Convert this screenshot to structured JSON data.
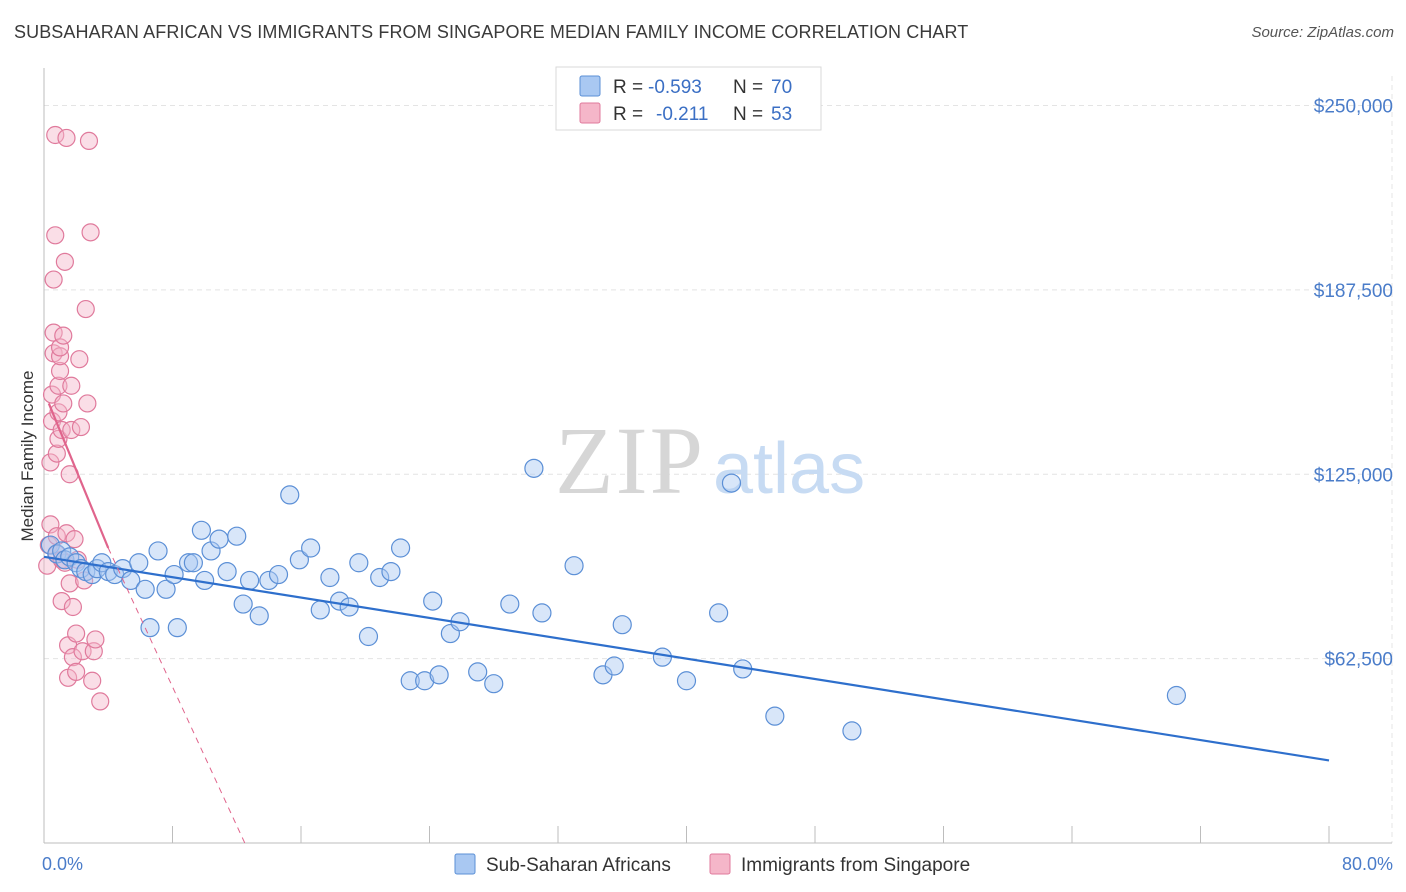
{
  "header": {
    "title": "SUBSAHARAN AFRICAN VS IMMIGRANTS FROM SINGAPORE MEDIAN FAMILY INCOME CORRELATION CHART",
    "source": "Source: ZipAtlas.com"
  },
  "watermark": {
    "zip": "ZIP",
    "atlas": "atlas"
  },
  "legend": {
    "rows": [
      {
        "r_label": "R =",
        "r_value": "-0.593",
        "n_label": "N =",
        "n_value": "70",
        "color": "#a9c8f2"
      },
      {
        "r_label": "R =",
        "r_value": "-0.211",
        "n_label": "N =",
        "n_value": "53",
        "color": "#f5b6c9"
      }
    ]
  },
  "colors": {
    "blue_fill": "#a9c8f2",
    "blue_stroke": "#5b8fd6",
    "blue_line": "#2e6fcc",
    "pink_fill": "#f5b6c9",
    "pink_stroke": "#e07a9c",
    "pink_line": "#e0648c",
    "grid": "#e4e4e4",
    "axis_label": "#4a7cc9"
  },
  "chart_data": {
    "type": "scatter",
    "title": "SUBSAHARAN AFRICAN VS IMMIGRANTS FROM SINGAPORE MEDIAN FAMILY INCOME CORRELATION CHART",
    "xlabel": "",
    "ylabel": "Median Family Income",
    "xlim": [
      0,
      80
    ],
    "ylim": [
      0,
      260000
    ],
    "x_tick_labels": [
      "0.0%",
      "80.0%"
    ],
    "y_ticks": [
      62500,
      125000,
      187500,
      250000
    ],
    "y_tick_labels": [
      "$62,500",
      "$125,000",
      "$187,500",
      "$250,000"
    ],
    "grid": true,
    "legend_position": "top-center",
    "series": [
      {
        "name": "Sub-Saharan Africans",
        "color": "#a9c8f2",
        "points": [
          [
            0.4,
            101000
          ],
          [
            0.8,
            98000
          ],
          [
            1.1,
            99000
          ],
          [
            1.3,
            96000
          ],
          [
            1.6,
            97000
          ],
          [
            2.0,
            95000
          ],
          [
            2.3,
            93000
          ],
          [
            2.6,
            92000
          ],
          [
            3.0,
            91000
          ],
          [
            3.3,
            93000
          ],
          [
            3.6,
            95000
          ],
          [
            4.0,
            92000
          ],
          [
            4.4,
            91000
          ],
          [
            4.9,
            93000
          ],
          [
            5.4,
            89000
          ],
          [
            5.9,
            95000
          ],
          [
            6.3,
            86000
          ],
          [
            6.6,
            73000
          ],
          [
            7.1,
            99000
          ],
          [
            7.6,
            86000
          ],
          [
            8.1,
            91000
          ],
          [
            8.3,
            73000
          ],
          [
            9.0,
            95000
          ],
          [
            9.3,
            95000
          ],
          [
            9.8,
            106000
          ],
          [
            10.0,
            89000
          ],
          [
            10.4,
            99000
          ],
          [
            10.9,
            103000
          ],
          [
            11.4,
            92000
          ],
          [
            12.0,
            104000
          ],
          [
            12.4,
            81000
          ],
          [
            12.8,
            89000
          ],
          [
            13.4,
            77000
          ],
          [
            14.0,
            89000
          ],
          [
            14.6,
            91000
          ],
          [
            15.3,
            118000
          ],
          [
            15.9,
            96000
          ],
          [
            16.6,
            100000
          ],
          [
            17.2,
            79000
          ],
          [
            17.8,
            90000
          ],
          [
            18.4,
            82000
          ],
          [
            19.0,
            80000
          ],
          [
            19.6,
            95000
          ],
          [
            20.2,
            70000
          ],
          [
            20.9,
            90000
          ],
          [
            21.6,
            92000
          ],
          [
            22.2,
            100000
          ],
          [
            22.8,
            55000
          ],
          [
            23.7,
            55000
          ],
          [
            24.2,
            82000
          ],
          [
            24.6,
            57000
          ],
          [
            25.3,
            71000
          ],
          [
            25.9,
            75000
          ],
          [
            27.0,
            58000
          ],
          [
            28.0,
            54000
          ],
          [
            29.0,
            81000
          ],
          [
            30.5,
            127000
          ],
          [
            31.0,
            78000
          ],
          [
            33.0,
            94000
          ],
          [
            34.8,
            57000
          ],
          [
            35.5,
            60000
          ],
          [
            36.0,
            74000
          ],
          [
            38.5,
            63000
          ],
          [
            40.0,
            55000
          ],
          [
            42.0,
            78000
          ],
          [
            42.8,
            122000
          ],
          [
            43.5,
            59000
          ],
          [
            45.5,
            43000
          ],
          [
            50.3,
            38000
          ],
          [
            70.5,
            50000
          ]
        ]
      },
      {
        "name": "Immigrants from Singapore",
        "color": "#f5b6c9",
        "points": [
          [
            0.2,
            94000
          ],
          [
            0.3,
            101000
          ],
          [
            0.4,
            108000
          ],
          [
            0.4,
            129000
          ],
          [
            0.5,
            143000
          ],
          [
            0.5,
            152000
          ],
          [
            0.6,
            166000
          ],
          [
            0.6,
            173000
          ],
          [
            0.6,
            191000
          ],
          [
            0.7,
            206000
          ],
          [
            0.7,
            240000
          ],
          [
            0.8,
            98000
          ],
          [
            0.8,
            104000
          ],
          [
            0.8,
            132000
          ],
          [
            0.9,
            137000
          ],
          [
            0.9,
            146000
          ],
          [
            0.9,
            155000
          ],
          [
            1.0,
            160000
          ],
          [
            1.0,
            165000
          ],
          [
            1.0,
            168000
          ],
          [
            1.1,
            82000
          ],
          [
            1.1,
            96000
          ],
          [
            1.1,
            140000
          ],
          [
            1.2,
            149000
          ],
          [
            1.2,
            172000
          ],
          [
            1.3,
            197000
          ],
          [
            1.3,
            95000
          ],
          [
            1.4,
            239000
          ],
          [
            1.4,
            105000
          ],
          [
            1.5,
            56000
          ],
          [
            1.5,
            67000
          ],
          [
            1.6,
            88000
          ],
          [
            1.6,
            125000
          ],
          [
            1.7,
            140000
          ],
          [
            1.7,
            155000
          ],
          [
            1.8,
            63000
          ],
          [
            1.8,
            80000
          ],
          [
            1.9,
            103000
          ],
          [
            2.0,
            58000
          ],
          [
            2.0,
            71000
          ],
          [
            2.1,
            96000
          ],
          [
            2.2,
            164000
          ],
          [
            2.3,
            141000
          ],
          [
            2.4,
            65000
          ],
          [
            2.5,
            89000
          ],
          [
            2.6,
            181000
          ],
          [
            2.7,
            149000
          ],
          [
            2.8,
            238000
          ],
          [
            2.9,
            207000
          ],
          [
            3.0,
            55000
          ],
          [
            3.1,
            65000
          ],
          [
            3.2,
            69000
          ],
          [
            3.5,
            48000
          ]
        ]
      }
    ],
    "trend_lines": [
      {
        "series": "Sub-Saharan Africans",
        "x": [
          0,
          80
        ],
        "y": [
          97000,
          28000
        ]
      },
      {
        "series": "Immigrants from Singapore",
        "x": [
          0.3,
          4
        ],
        "y": [
          149000,
          100000
        ],
        "extension_x": [
          4,
          12.5
        ],
        "extension_y": [
          100000,
          -6000
        ]
      }
    ]
  },
  "bottom_legend": {
    "items": [
      {
        "label": "Sub-Saharan Africans",
        "color": "#a9c8f2"
      },
      {
        "label": "Immigrants from Singapore",
        "color": "#f5b6c9"
      }
    ]
  }
}
